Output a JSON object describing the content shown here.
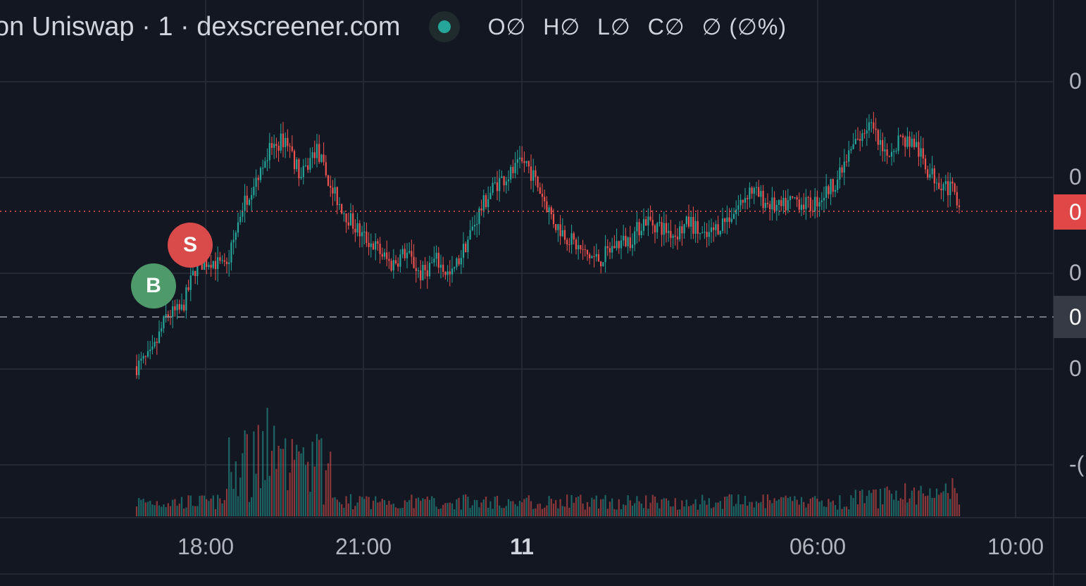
{
  "legend": {
    "title": "on Uniswap · 1 · dexscreener.com",
    "open": "O∅",
    "high": "H∅",
    "low": "L∅",
    "close": "C∅",
    "change": "∅ (∅%)"
  },
  "markers": {
    "buy": "B",
    "sell": "S"
  },
  "price_axis": {
    "labels": [
      "0",
      "0",
      "0",
      "0",
      "-("
    ],
    "last_price_label": "0",
    "crosshair_label": "0"
  },
  "time_axis": {
    "labels": [
      "18:00",
      "21:00",
      "11",
      "06:00",
      "10:00"
    ]
  },
  "colors": {
    "background": "#131722",
    "up": "#26a69a",
    "down": "#ef5350",
    "grid": "#2a2e39",
    "buy_marker": "#4e9a6a",
    "sell_marker": "#d94a4a"
  },
  "chart_data": {
    "type": "candlestick",
    "title": "on Uniswap · 1 · dexscreener.com",
    "interval": "1",
    "x_ticks": [
      "18:00",
      "21:00",
      "11",
      "06:00",
      "10:00"
    ],
    "y_tick_labels": [
      "0",
      "0",
      "0",
      "0",
      "-("
    ],
    "grid": true,
    "volume_pane": true,
    "price_path_relative": [
      [
        0,
        0.0
      ],
      [
        0.02,
        0.04
      ],
      [
        0.04,
        0.2
      ],
      [
        0.06,
        0.22
      ],
      [
        0.08,
        0.4
      ],
      [
        0.1,
        0.42
      ],
      [
        0.12,
        0.38
      ],
      [
        0.14,
        0.62
      ],
      [
        0.16,
        0.75
      ],
      [
        0.18,
        0.86
      ],
      [
        0.2,
        0.9
      ],
      [
        0.22,
        0.74
      ],
      [
        0.24,
        0.86
      ],
      [
        0.26,
        0.7
      ],
      [
        0.28,
        0.6
      ],
      [
        0.3,
        0.52
      ],
      [
        0.32,
        0.47
      ],
      [
        0.34,
        0.4
      ],
      [
        0.36,
        0.45
      ],
      [
        0.38,
        0.36
      ],
      [
        0.4,
        0.42
      ],
      [
        0.42,
        0.35
      ],
      [
        0.44,
        0.48
      ],
      [
        0.46,
        0.62
      ],
      [
        0.48,
        0.72
      ],
      [
        0.5,
        0.76
      ],
      [
        0.52,
        0.81
      ],
      [
        0.54,
        0.69
      ],
      [
        0.56,
        0.56
      ],
      [
        0.58,
        0.5
      ],
      [
        0.6,
        0.44
      ],
      [
        0.62,
        0.42
      ],
      [
        0.64,
        0.48
      ],
      [
        0.66,
        0.5
      ],
      [
        0.68,
        0.58
      ],
      [
        0.7,
        0.55
      ],
      [
        0.72,
        0.52
      ],
      [
        0.74,
        0.57
      ],
      [
        0.76,
        0.5
      ],
      [
        0.78,
        0.56
      ],
      [
        0.8,
        0.61
      ],
      [
        0.82,
        0.7
      ],
      [
        0.84,
        0.65
      ],
      [
        0.86,
        0.62
      ],
      [
        0.88,
        0.66
      ],
      [
        0.9,
        0.63
      ],
      [
        0.92,
        0.68
      ],
      [
        0.94,
        0.75
      ],
      [
        0.96,
        0.88
      ],
      [
        0.98,
        0.96
      ],
      [
        1.0,
        0.82
      ],
      [
        1.02,
        0.9
      ],
      [
        1.04,
        0.88
      ],
      [
        1.06,
        0.76
      ],
      [
        1.08,
        0.72
      ],
      [
        1.1,
        0.66
      ]
    ],
    "last_price_relative": 0.69,
    "buy_marker_relative": [
      0.1,
      0.44
    ],
    "sell_marker_relative": [
      0.13,
      0.57
    ]
  }
}
